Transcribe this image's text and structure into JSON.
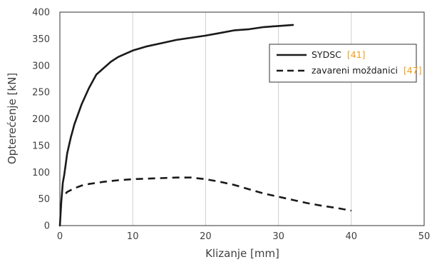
{
  "chart_data": {
    "type": "line",
    "xlabel": "Klizanje [mm]",
    "ylabel": "Opterećenje [kN]",
    "xlim": [
      0,
      50
    ],
    "ylim": [
      0,
      400
    ],
    "xticks": [
      "0",
      "10",
      "20",
      "30",
      "40",
      "50"
    ],
    "yticks": [
      "0",
      "50",
      "100",
      "150",
      "200",
      "250",
      "300",
      "350",
      "400"
    ],
    "grid": "vertical",
    "legend_position": "right",
    "series": [
      {
        "name": "SYDSC",
        "ref": "[41]",
        "style": "solid",
        "color": "#1a1a1a",
        "x": [
          0,
          0.2,
          0.4,
          0.6,
          0.8,
          1,
          1.5,
          2,
          3,
          4,
          5,
          6,
          7,
          8,
          10,
          12,
          14,
          16,
          18,
          20,
          22,
          24,
          26,
          28,
          30,
          32
        ],
        "y": [
          0,
          45,
          80,
          95,
          115,
          135,
          165,
          190,
          228,
          258,
          283,
          295,
          307,
          316,
          328,
          336,
          342,
          348,
          352,
          356,
          361,
          366,
          368,
          372,
          374,
          376
        ]
      },
      {
        "name": "zavareni moždanici",
        "ref": "[47]",
        "style": "dashed",
        "color": "#1a1a1a",
        "x": [
          0.8,
          1,
          2,
          3,
          4,
          6,
          8,
          10,
          12,
          14,
          16,
          18,
          20,
          22,
          24,
          26,
          28,
          30,
          32,
          34,
          36,
          38,
          40
        ],
        "y": [
          60,
          63,
          70,
          75,
          78,
          82,
          85,
          87,
          88,
          89,
          90,
          90,
          87,
          82,
          76,
          68,
          60,
          54,
          48,
          42,
          37,
          33,
          28
        ]
      }
    ]
  }
}
